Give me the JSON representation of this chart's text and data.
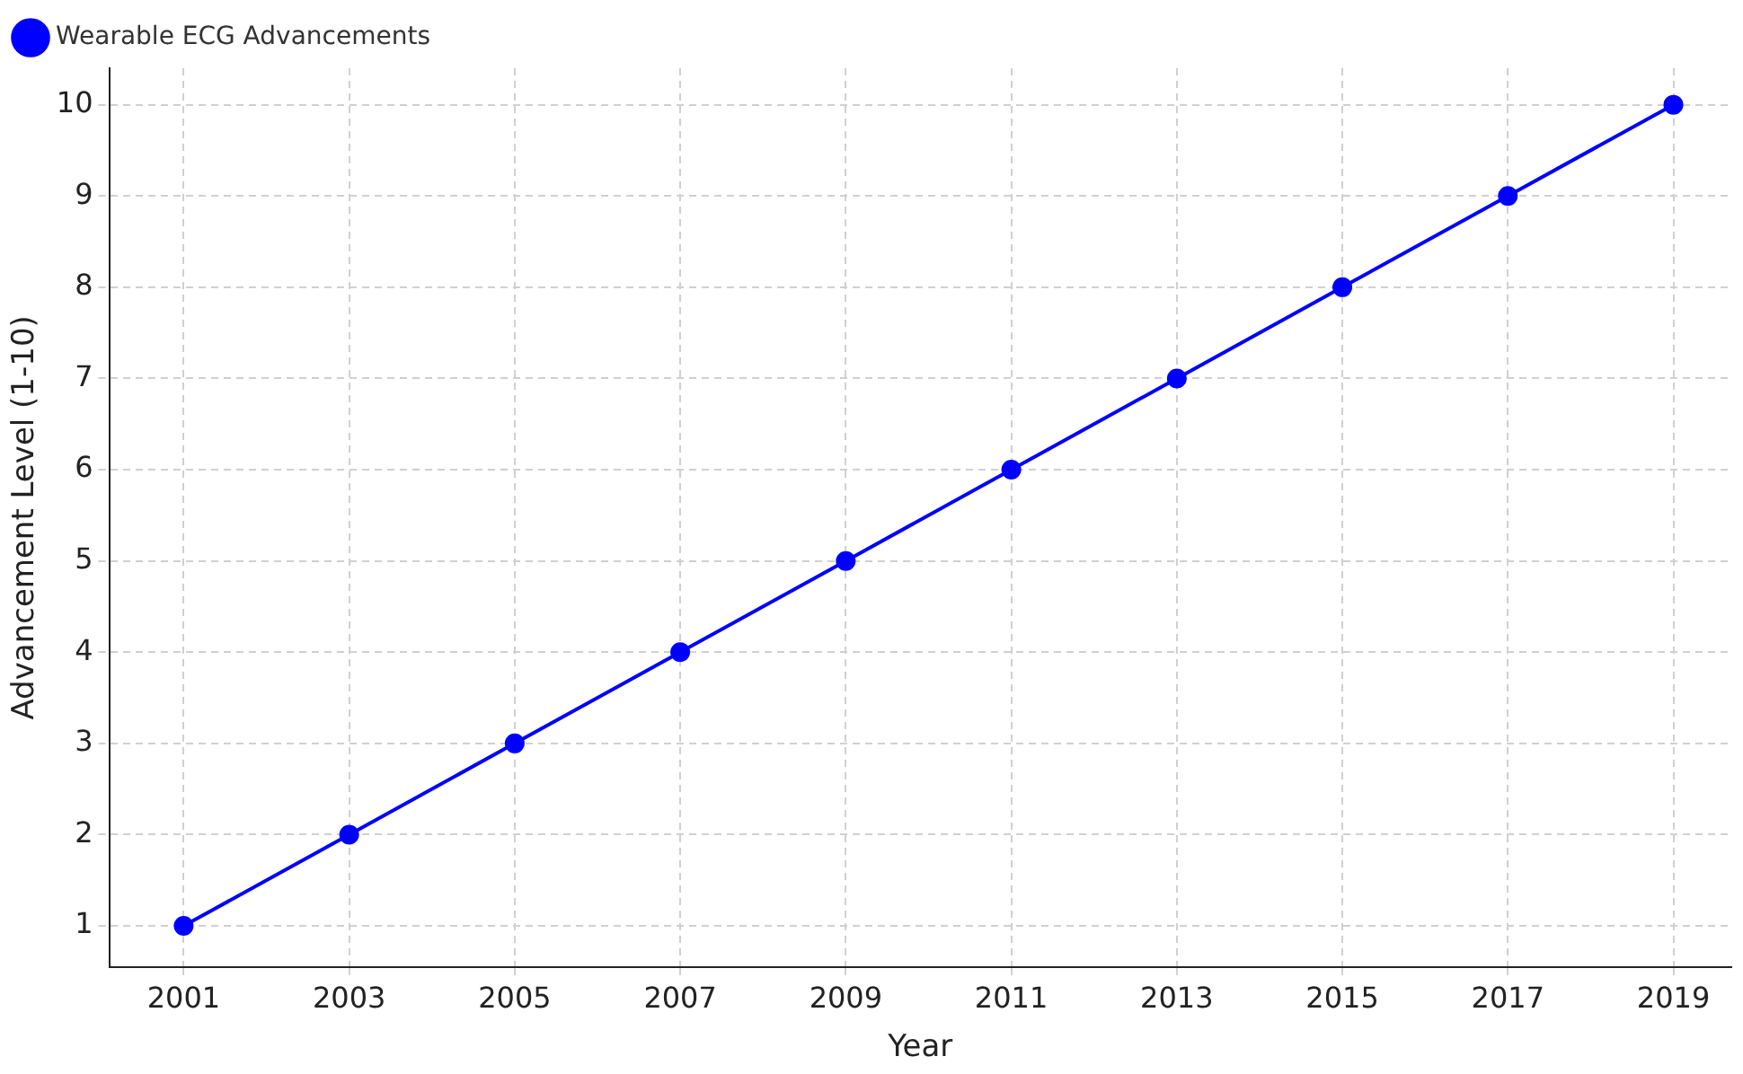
{
  "chart_data": {
    "type": "line",
    "xlabel": "Year",
    "ylabel": "Advancement Level (1-10)",
    "x": [
      2001,
      2003,
      2005,
      2007,
      2009,
      2011,
      2013,
      2015,
      2017,
      2019
    ],
    "series": [
      {
        "name": "Wearable ECG Advancements",
        "color": "#0000ff",
        "values": [
          1,
          2,
          3,
          4,
          5,
          6,
          7,
          8,
          9,
          10
        ]
      }
    ],
    "xlim": [
      2000.1,
      2019.7
    ],
    "ylim": [
      0.55,
      10.4
    ],
    "xticks": [
      2001,
      2003,
      2005,
      2007,
      2009,
      2011,
      2013,
      2015,
      2017,
      2019
    ],
    "yticks": [
      1,
      2,
      3,
      4,
      5,
      6,
      7,
      8,
      9,
      10
    ],
    "grid": true,
    "legend": "top left",
    "marker": "circle",
    "line_style": "solid"
  }
}
